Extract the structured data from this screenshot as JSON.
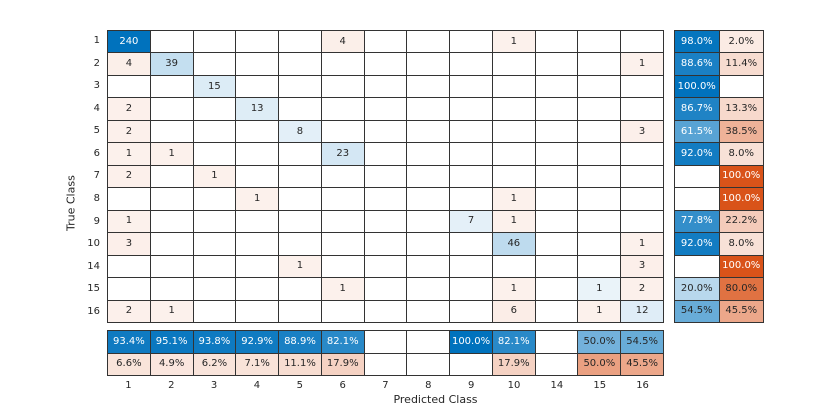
{
  "chart_data": {
    "type": "heatmap",
    "variant": "confusion-matrix",
    "title": "",
    "xlabel": "Predicted Class",
    "ylabel": "True Class",
    "classes": [
      "1",
      "2",
      "3",
      "4",
      "5",
      "6",
      "7",
      "8",
      "9",
      "10",
      "14",
      "15",
      "16"
    ],
    "matrix": [
      [
        240,
        0,
        0,
        0,
        0,
        4,
        0,
        0,
        0,
        1,
        0,
        0,
        0
      ],
      [
        4,
        39,
        0,
        0,
        0,
        0,
        0,
        0,
        0,
        0,
        0,
        0,
        1
      ],
      [
        0,
        0,
        15,
        0,
        0,
        0,
        0,
        0,
        0,
        0,
        0,
        0,
        0
      ],
      [
        2,
        0,
        0,
        13,
        0,
        0,
        0,
        0,
        0,
        0,
        0,
        0,
        0
      ],
      [
        2,
        0,
        0,
        0,
        8,
        0,
        0,
        0,
        0,
        0,
        0,
        0,
        3
      ],
      [
        1,
        1,
        0,
        0,
        0,
        23,
        0,
        0,
        0,
        0,
        0,
        0,
        0
      ],
      [
        2,
        0,
        1,
        0,
        0,
        0,
        0,
        0,
        0,
        0,
        0,
        0,
        0
      ],
      [
        0,
        0,
        0,
        1,
        0,
        0,
        0,
        0,
        0,
        1,
        0,
        0,
        0
      ],
      [
        1,
        0,
        0,
        0,
        0,
        0,
        0,
        0,
        7,
        1,
        0,
        0,
        0
      ],
      [
        3,
        0,
        0,
        0,
        0,
        0,
        0,
        0,
        0,
        46,
        0,
        0,
        1
      ],
      [
        0,
        0,
        0,
        0,
        1,
        0,
        0,
        0,
        0,
        0,
        0,
        0,
        3
      ],
      [
        0,
        0,
        0,
        0,
        0,
        1,
        0,
        0,
        0,
        1,
        0,
        1,
        2
      ],
      [
        2,
        1,
        0,
        0,
        0,
        0,
        0,
        0,
        0,
        6,
        0,
        1,
        12
      ]
    ],
    "row_summary": {
      "correct": [
        "98.0%",
        "88.6%",
        "100.0%",
        "86.7%",
        "61.5%",
        "92.0%",
        "",
        "",
        "77.8%",
        "92.0%",
        "",
        "20.0%",
        "54.5%"
      ],
      "incorrect": [
        "2.0%",
        "11.4%",
        "",
        "13.3%",
        "38.5%",
        "8.0%",
        "100.0%",
        "100.0%",
        "22.2%",
        "8.0%",
        "100.0%",
        "80.0%",
        "45.5%"
      ]
    },
    "col_summary": {
      "correct": [
        "93.4%",
        "95.1%",
        "93.8%",
        "92.9%",
        "88.9%",
        "82.1%",
        "",
        "",
        "100.0%",
        "82.1%",
        "",
        "50.0%",
        "54.5%"
      ],
      "incorrect": [
        "6.6%",
        "4.9%",
        "6.2%",
        "7.1%",
        "11.1%",
        "17.9%",
        "",
        "",
        "",
        "17.9%",
        "",
        "50.0%",
        "45.5%"
      ]
    },
    "colors": {
      "correct_base": "#0072BD",
      "incorrect_base": "#D95319",
      "grid_line": "#333333",
      "cell_text": "#262626"
    },
    "layout": {
      "grid": true,
      "row_summary_position": "right",
      "col_summary_position": "bottom"
    }
  }
}
